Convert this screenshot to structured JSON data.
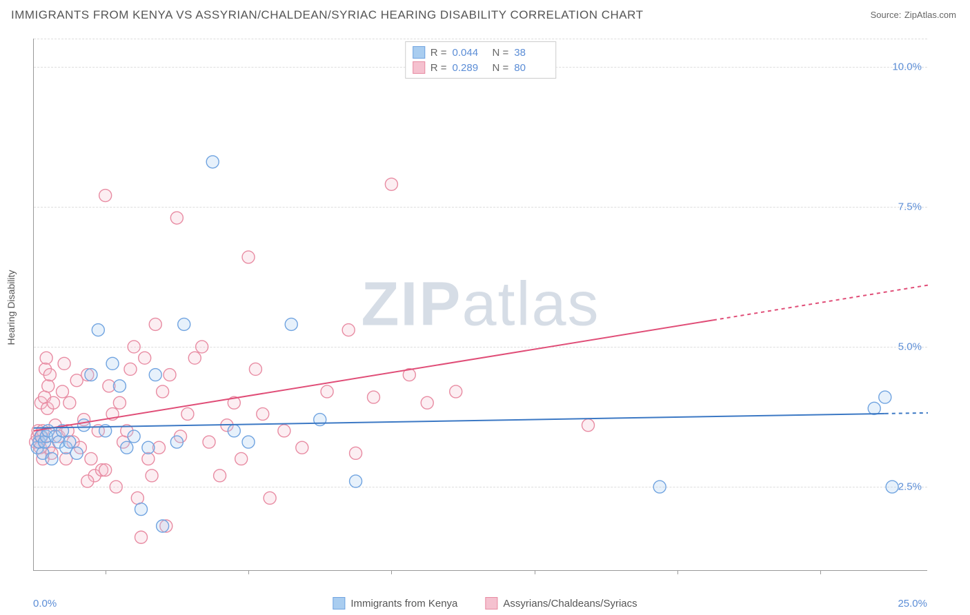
{
  "title": "IMMIGRANTS FROM KENYA VS ASSYRIAN/CHALDEAN/SYRIAC HEARING DISABILITY CORRELATION CHART",
  "source_label": "Source:",
  "source_value": "ZipAtlas.com",
  "watermark_bold": "ZIP",
  "watermark_light": "atlas",
  "y_axis_label": "Hearing Disability",
  "chart": {
    "type": "scatter",
    "background": "#ffffff",
    "grid_color": "#dddddd",
    "axis_color": "#999999",
    "tick_label_color": "#5b8dd6",
    "xlim": [
      0,
      25
    ],
    "ylim": [
      1.0,
      10.5
    ],
    "y_ticks": [
      2.5,
      5.0,
      7.5,
      10.0
    ],
    "y_tick_labels": [
      "2.5%",
      "5.0%",
      "7.5%",
      "10.0%"
    ],
    "x_tick_positions": [
      2,
      6,
      10,
      14,
      18,
      22
    ],
    "x_start_label": "0.0%",
    "x_end_label": "25.0%",
    "marker_radius": 9,
    "marker_stroke_width": 1.4,
    "marker_fill_opacity": 0.28,
    "line_width": 2,
    "dash_pattern": "5,5"
  },
  "series": {
    "kenya": {
      "label": "Immigrants from Kenya",
      "stroke": "#6fa3e0",
      "fill": "#a9cdf0",
      "line_color": "#3b78c4",
      "R": "0.044",
      "N": "38",
      "points": [
        [
          0.1,
          3.2
        ],
        [
          0.15,
          3.3
        ],
        [
          0.2,
          3.4
        ],
        [
          0.25,
          3.1
        ],
        [
          0.3,
          3.3
        ],
        [
          0.35,
          3.4
        ],
        [
          0.4,
          3.5
        ],
        [
          0.5,
          3.0
        ],
        [
          0.6,
          3.4
        ],
        [
          0.7,
          3.3
        ],
        [
          0.8,
          3.5
        ],
        [
          0.9,
          3.2
        ],
        [
          1.0,
          3.3
        ],
        [
          1.2,
          3.1
        ],
        [
          1.4,
          3.6
        ],
        [
          1.6,
          4.5
        ],
        [
          1.8,
          5.3
        ],
        [
          2.0,
          3.5
        ],
        [
          2.2,
          4.7
        ],
        [
          2.4,
          4.3
        ],
        [
          2.6,
          3.2
        ],
        [
          2.8,
          3.4
        ],
        [
          3.0,
          2.1
        ],
        [
          3.2,
          3.2
        ],
        [
          3.4,
          4.5
        ],
        [
          3.6,
          1.8
        ],
        [
          4.0,
          3.3
        ],
        [
          4.2,
          5.4
        ],
        [
          5.0,
          8.3
        ],
        [
          5.6,
          3.5
        ],
        [
          6.0,
          3.3
        ],
        [
          7.2,
          5.4
        ],
        [
          8.0,
          3.7
        ],
        [
          9.0,
          2.6
        ],
        [
          17.5,
          2.5
        ],
        [
          23.8,
          4.1
        ],
        [
          24.0,
          2.5
        ],
        [
          23.5,
          3.9
        ]
      ],
      "trend": {
        "x1": 0,
        "y1": 3.55,
        "x2": 25,
        "y2": 3.82,
        "solid_end_x": 23.8
      }
    },
    "assyrian": {
      "label": "Assyrians/Chaldeans/Syriacs",
      "stroke": "#e88ba2",
      "fill": "#f5c1cf",
      "line_color": "#e04d77",
      "R": "0.289",
      "N": "80",
      "points": [
        [
          0.05,
          3.3
        ],
        [
          0.1,
          3.4
        ],
        [
          0.12,
          3.5
        ],
        [
          0.15,
          3.3
        ],
        [
          0.18,
          3.2
        ],
        [
          0.2,
          4.0
        ],
        [
          0.22,
          3.4
        ],
        [
          0.25,
          3.5
        ],
        [
          0.3,
          4.1
        ],
        [
          0.32,
          4.6
        ],
        [
          0.35,
          4.8
        ],
        [
          0.38,
          3.9
        ],
        [
          0.4,
          4.3
        ],
        [
          0.42,
          3.2
        ],
        [
          0.45,
          4.5
        ],
        [
          0.5,
          3.1
        ],
        [
          0.55,
          4.0
        ],
        [
          0.6,
          3.6
        ],
        [
          0.7,
          3.4
        ],
        [
          0.8,
          4.2
        ],
        [
          0.85,
          4.7
        ],
        [
          0.9,
          3.0
        ],
        [
          0.95,
          3.5
        ],
        [
          1.0,
          4.0
        ],
        [
          1.1,
          3.3
        ],
        [
          1.2,
          4.4
        ],
        [
          1.3,
          3.2
        ],
        [
          1.4,
          3.7
        ],
        [
          1.5,
          4.5
        ],
        [
          1.6,
          3.0
        ],
        [
          1.7,
          2.7
        ],
        [
          1.8,
          3.5
        ],
        [
          1.9,
          2.8
        ],
        [
          2.0,
          7.7
        ],
        [
          2.1,
          4.3
        ],
        [
          2.2,
          3.8
        ],
        [
          2.3,
          2.5
        ],
        [
          2.4,
          4.0
        ],
        [
          2.5,
          3.3
        ],
        [
          2.6,
          3.5
        ],
        [
          2.7,
          4.6
        ],
        [
          2.8,
          5.0
        ],
        [
          2.9,
          2.3
        ],
        [
          3.0,
          1.6
        ],
        [
          3.1,
          4.8
        ],
        [
          3.2,
          3.0
        ],
        [
          3.3,
          2.7
        ],
        [
          3.4,
          5.4
        ],
        [
          3.5,
          3.2
        ],
        [
          3.6,
          4.2
        ],
        [
          3.7,
          1.8
        ],
        [
          3.8,
          4.5
        ],
        [
          4.0,
          7.3
        ],
        [
          4.1,
          3.4
        ],
        [
          4.3,
          3.8
        ],
        [
          4.5,
          4.8
        ],
        [
          4.7,
          5.0
        ],
        [
          4.9,
          3.3
        ],
        [
          5.2,
          2.7
        ],
        [
          5.4,
          3.6
        ],
        [
          5.6,
          4.0
        ],
        [
          5.8,
          3.0
        ],
        [
          6.0,
          6.6
        ],
        [
          6.2,
          4.6
        ],
        [
          6.4,
          3.8
        ],
        [
          6.6,
          2.3
        ],
        [
          7.0,
          3.5
        ],
        [
          7.5,
          3.2
        ],
        [
          8.2,
          4.2
        ],
        [
          8.8,
          5.3
        ],
        [
          9.0,
          3.1
        ],
        [
          9.5,
          4.1
        ],
        [
          10.0,
          7.9
        ],
        [
          10.5,
          4.5
        ],
        [
          11.0,
          4.0
        ],
        [
          11.8,
          4.2
        ],
        [
          15.5,
          3.6
        ],
        [
          2.0,
          2.8
        ],
        [
          1.5,
          2.6
        ],
        [
          0.25,
          3.0
        ]
      ],
      "trend": {
        "x1": 0,
        "y1": 3.5,
        "x2": 25,
        "y2": 6.1,
        "solid_end_x": 19.0
      }
    }
  },
  "legend_rows": [
    {
      "swatch_series": "kenya",
      "R_label": "R =",
      "N_label": "N ="
    },
    {
      "swatch_series": "assyrian",
      "R_label": "R =",
      "N_label": "N ="
    }
  ]
}
